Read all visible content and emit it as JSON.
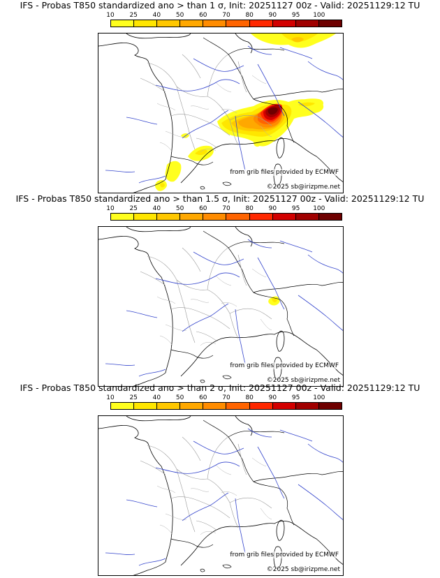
{
  "colorbar": {
    "ticks": [
      "10",
      "25",
      "40",
      "50",
      "60",
      "70",
      "80",
      "90",
      "95",
      "100"
    ],
    "colors": [
      "#ffff1e",
      "#ffe600",
      "#ffc800",
      "#ffa800",
      "#ff8c00",
      "#ff6400",
      "#ff2800",
      "#d20000",
      "#a00000",
      "#6e0000"
    ]
  },
  "panels": [
    {
      "title": "IFS - Probas T850  standardized ano > than 1 σ, Init: 20251127 00z - Valid: 20251129:12 TU",
      "source_credit": "from grib files provided by ECMWF",
      "copyright": "©2025 sb@irizpme.net"
    },
    {
      "title": "IFS - Probas T850  standardized ano > than 1.5 σ, Init: 20251127 00z - Valid: 20251129:12 TU",
      "source_credit": "from grib files provided by ECMWF",
      "copyright": "©2025 sb@irizpme.net"
    },
    {
      "title": "IFS - Probas T850  standardized ano > than 2 σ, Init: 20251127 00z - Valid: 20251129:12 TU",
      "source_credit": "from grib files provided by ECMWF",
      "copyright": "©2025 sb@irizpme.net"
    }
  ]
}
